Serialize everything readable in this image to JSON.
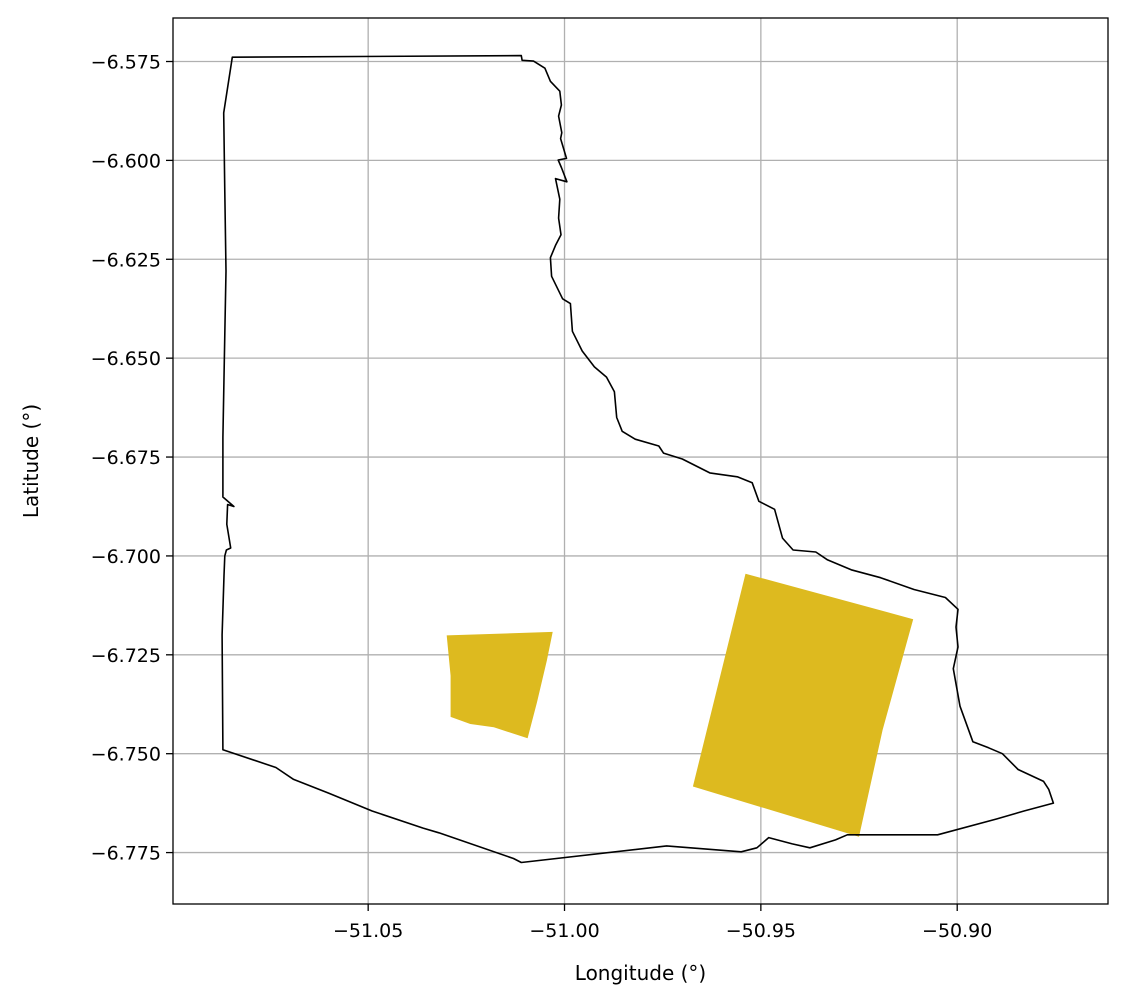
{
  "chart_data": {
    "type": "map",
    "title": "",
    "xlabel": "Longitude (°)",
    "ylabel": "Latitude (°)",
    "xlim": [
      -51.0997,
      -50.8616
    ],
    "ylim": [
      -6.788,
      -6.564
    ],
    "grid": true,
    "x_ticks": [
      {
        "value": -51.05,
        "label": "−51.05"
      },
      {
        "value": -51.0,
        "label": "−51.00"
      },
      {
        "value": -50.95,
        "label": "−50.95"
      },
      {
        "value": -50.9,
        "label": "−50.90"
      }
    ],
    "y_ticks": [
      {
        "value": -6.575,
        "label": "−6.575"
      },
      {
        "value": -6.6,
        "label": "−6.600"
      },
      {
        "value": -6.625,
        "label": "−6.625"
      },
      {
        "value": -6.65,
        "label": "−6.650"
      },
      {
        "value": -6.675,
        "label": "−6.675"
      },
      {
        "value": -6.7,
        "label": "−6.700"
      },
      {
        "value": -6.725,
        "label": "−6.725"
      },
      {
        "value": -6.75,
        "label": "−6.750"
      },
      {
        "value": -6.775,
        "label": "−6.775"
      }
    ],
    "boundary": {
      "stroke": "#000000",
      "coordinates": [
        [
          -51.0846,
          -6.5739
        ],
        [
          -51.011,
          -6.5735
        ],
        [
          -51.0108,
          -6.5747
        ],
        [
          -51.0079,
          -6.5749
        ],
        [
          -51.005,
          -6.5767
        ],
        [
          -51.0036,
          -6.58
        ],
        [
          -51.0012,
          -6.5825
        ],
        [
          -51.0008,
          -6.586
        ],
        [
          -51.0015,
          -6.5888
        ],
        [
          -51.0007,
          -6.593
        ],
        [
          -51.001,
          -6.5945
        ],
        [
          -50.9995,
          -6.5995
        ],
        [
          -51.0016,
          -6.5999
        ],
        [
          -51.0008,
          -6.6018
        ],
        [
          -50.9994,
          -6.6054
        ],
        [
          -51.0023,
          -6.6046
        ],
        [
          -51.0012,
          -6.6098
        ],
        [
          -51.0015,
          -6.6146
        ],
        [
          -51.0009,
          -6.6188
        ],
        [
          -51.0023,
          -6.6215
        ],
        [
          -51.0036,
          -6.6246
        ],
        [
          -51.0033,
          -6.6293
        ],
        [
          -51.0005,
          -6.635
        ],
        [
          -50.9985,
          -6.6362
        ],
        [
          -50.998,
          -6.6432
        ],
        [
          -50.9955,
          -6.6482
        ],
        [
          -50.9924,
          -6.6522
        ],
        [
          -50.9893,
          -6.6548
        ],
        [
          -50.9873,
          -6.6585
        ],
        [
          -50.9867,
          -6.665
        ],
        [
          -50.9853,
          -6.6685
        ],
        [
          -50.982,
          -6.6705
        ],
        [
          -50.976,
          -6.6722
        ],
        [
          -50.9748,
          -6.674
        ],
        [
          -50.97,
          -6.6755
        ],
        [
          -50.963,
          -6.679
        ],
        [
          -50.956,
          -6.68
        ],
        [
          -50.9522,
          -6.6815
        ],
        [
          -50.9505,
          -6.6862
        ],
        [
          -50.9465,
          -6.6882
        ],
        [
          -50.9445,
          -6.6955
        ],
        [
          -50.9418,
          -6.6985
        ],
        [
          -50.936,
          -6.699
        ],
        [
          -50.933,
          -6.701
        ],
        [
          -50.927,
          -6.7035
        ],
        [
          -50.9195,
          -6.7055
        ],
        [
          -50.911,
          -6.7085
        ],
        [
          -50.903,
          -6.7105
        ],
        [
          -50.8998,
          -6.7135
        ],
        [
          -50.9003,
          -6.718
        ],
        [
          -50.8998,
          -6.723
        ],
        [
          -50.901,
          -6.7285
        ],
        [
          -50.8993,
          -6.738
        ],
        [
          -50.896,
          -6.747
        ],
        [
          -50.892,
          -6.7485
        ],
        [
          -50.8885,
          -6.75
        ],
        [
          -50.8845,
          -6.754
        ],
        [
          -50.878,
          -6.757
        ],
        [
          -50.8767,
          -6.759
        ],
        [
          -50.8755,
          -6.7625
        ],
        [
          -50.883,
          -6.7645
        ],
        [
          -50.89,
          -6.7665
        ],
        [
          -50.905,
          -6.7705
        ],
        [
          -50.928,
          -6.7705
        ],
        [
          -50.931,
          -6.7718
        ],
        [
          -50.9375,
          -6.7738
        ],
        [
          -50.942,
          -6.7728
        ],
        [
          -50.948,
          -6.7712
        ],
        [
          -50.951,
          -6.7738
        ],
        [
          -50.955,
          -6.7748
        ],
        [
          -50.974,
          -6.7733
        ],
        [
          -51.011,
          -6.7775
        ],
        [
          -51.013,
          -6.7765
        ],
        [
          -51.032,
          -6.77
        ],
        [
          -51.036,
          -6.7688
        ],
        [
          -51.049,
          -6.7645
        ],
        [
          -51.06,
          -6.76
        ],
        [
          -51.069,
          -6.7565
        ],
        [
          -51.0735,
          -6.7535
        ],
        [
          -51.087,
          -6.749
        ],
        [
          -51.0872,
          -6.72
        ],
        [
          -51.0867,
          -6.705
        ],
        [
          -51.0865,
          -6.7
        ],
        [
          -51.0861,
          -6.6985
        ],
        [
          -51.085,
          -6.698
        ],
        [
          -51.086,
          -6.692
        ],
        [
          -51.0858,
          -6.687
        ],
        [
          -51.0842,
          -6.6875
        ],
        [
          -51.087,
          -6.6851
        ],
        [
          -51.087,
          -6.67
        ],
        [
          -51.0865,
          -6.644
        ],
        [
          -51.0862,
          -6.628
        ],
        [
          -51.0865,
          -6.608
        ],
        [
          -51.0868,
          -6.588
        ],
        [
          -51.0846,
          -6.5739
        ]
      ]
    },
    "polygons": [
      {
        "fill": "#DDBA1F",
        "coordinates": [
          [
            -51.03,
            -6.7201
          ],
          [
            -51.003,
            -6.7192
          ],
          [
            -51.0045,
            -6.7265
          ],
          [
            -51.007,
            -6.737
          ],
          [
            -51.0094,
            -6.7461
          ],
          [
            -51.018,
            -6.7433
          ],
          [
            -51.024,
            -6.7425
          ],
          [
            -51.029,
            -6.7407
          ],
          [
            -51.029,
            -6.7303
          ],
          [
            -51.03,
            -6.7201
          ]
        ]
      },
      {
        "fill": "#DDBA1F",
        "coordinates": [
          [
            -50.9539,
            -6.7045
          ],
          [
            -50.9112,
            -6.716
          ],
          [
            -50.919,
            -6.744
          ],
          [
            -50.925,
            -6.771
          ],
          [
            -50.9673,
            -6.7583
          ],
          [
            -50.9539,
            -6.7045
          ]
        ]
      }
    ]
  }
}
